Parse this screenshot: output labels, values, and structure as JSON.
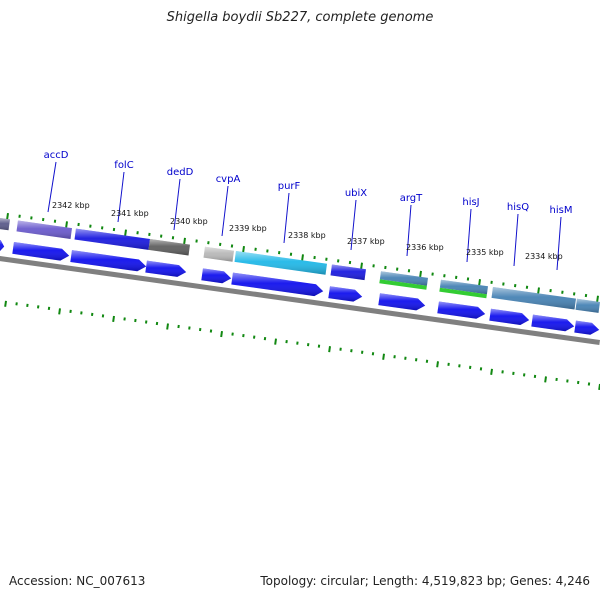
{
  "title": "Shigella boydii Sb227, complete genome",
  "accession_text": "Accession: NC_007613",
  "topology_text": "Topology: circular; Length: 4,519,823 bp; Genes: 4,246",
  "colors": {
    "gene_label": "#0000cc",
    "leader_line": "#1111cc",
    "backbone": "#808080",
    "tick": "#118811",
    "cds_arrow": "#1010ee",
    "kbp_label": "#111111"
  },
  "kbp_labels": [
    "2342 kbp",
    "2341 kbp",
    "2340 kbp",
    "2339 kbp",
    "2338 kbp",
    "2337 kbp",
    "2336 kbp",
    "2335 kbp",
    "2334 kbp"
  ],
  "gene_labels": [
    "accD",
    "folC",
    "dedD",
    "cvpA",
    "purF",
    "ubiX",
    "argT",
    "hisJ",
    "hisQ",
    "hisM"
  ],
  "top_features": [
    {
      "gene": "",
      "color": "#5a5a8a"
    },
    {
      "gene": "accD",
      "color": "#6a5acd"
    },
    {
      "gene": "folC",
      "color": "#1a1ae0"
    },
    {
      "gene": "dedD",
      "color": "#5e5e5e"
    },
    {
      "gene": "cvpA",
      "color": "#b8b8b8"
    },
    {
      "gene": "purF",
      "color": "#20b8e8"
    },
    {
      "gene": "ubiX",
      "color": "#1a1ae0"
    },
    {
      "gene": "argT",
      "color": "#4682b4",
      "band": "#33cc33"
    },
    {
      "gene": "hisJ",
      "color": "#4682b4",
      "band": "#33cc33"
    },
    {
      "gene": "hisQ",
      "color": "#4682b4"
    },
    {
      "gene": "hisM",
      "color": "#4682b4"
    }
  ]
}
